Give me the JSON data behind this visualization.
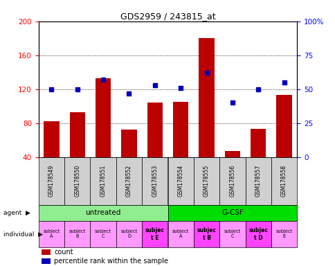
{
  "title": "GDS2959 / 243815_at",
  "samples": [
    "GSM178549",
    "GSM178550",
    "GSM178551",
    "GSM178552",
    "GSM178553",
    "GSM178554",
    "GSM178555",
    "GSM178556",
    "GSM178557",
    "GSM178558"
  ],
  "counts": [
    82,
    93,
    133,
    72,
    104,
    105,
    180,
    47,
    73,
    113
  ],
  "percentiles": [
    50,
    50,
    57,
    47,
    53,
    51,
    62,
    40,
    50,
    55
  ],
  "ylim_left": [
    40,
    200
  ],
  "ylim_right": [
    0,
    100
  ],
  "yticks_left": [
    40,
    80,
    120,
    160,
    200
  ],
  "yticks_right": [
    0,
    25,
    50,
    75,
    100
  ],
  "ytick_right_labels": [
    "0",
    "25",
    "50",
    "75",
    "100%"
  ],
  "agent_untreated_color": "#90EE90",
  "agent_gcsf_color": "#00DD00",
  "indiv_light_color": "#FF99FF",
  "indiv_bold_color": "#FF44FF",
  "sample_bg_color": "#D0D0D0",
  "bar_color": "#BB0000",
  "dot_color": "#0000BB",
  "individuals": [
    {
      "label": "subject\nA",
      "bold": false
    },
    {
      "label": "subject\nB",
      "bold": false
    },
    {
      "label": "subject\nC",
      "bold": false
    },
    {
      "label": "subject\nD",
      "bold": false
    },
    {
      "label": "subjec\nt E",
      "bold": true
    },
    {
      "label": "subject\nA",
      "bold": false
    },
    {
      "label": "subjec\nt B",
      "bold": true
    },
    {
      "label": "subject\nC",
      "bold": false
    },
    {
      "label": "subjec\nt D",
      "bold": true
    },
    {
      "label": "subject\nE",
      "bold": false
    }
  ],
  "legend_count": "count",
  "legend_percentile": "percentile rank within the sample"
}
